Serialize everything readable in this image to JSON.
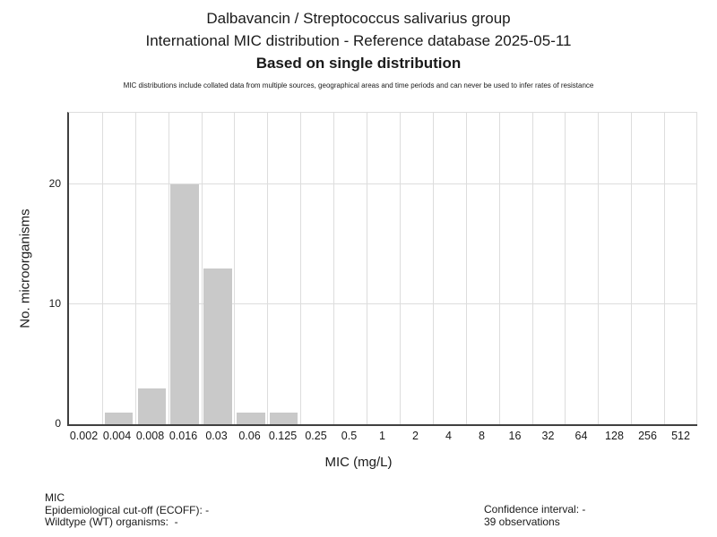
{
  "chart_data": {
    "type": "bar",
    "title": "Dalbavancin / Streptococcus salivarius group",
    "subtitle": "International MIC distribution - Reference database 2025-05-11",
    "emphasis": "Based on single distribution",
    "disclaimer": "MIC distributions include collated data from multiple sources, geographical areas and time periods and can never be used to infer rates of resistance",
    "categories": [
      "0.002",
      "0.004",
      "0.008",
      "0.016",
      "0.03",
      "0.06",
      "0.125",
      "0.25",
      "0.5",
      "1",
      "2",
      "4",
      "8",
      "16",
      "32",
      "64",
      "128",
      "256",
      "512"
    ],
    "values": [
      0,
      1,
      3,
      20,
      13,
      1,
      1,
      0,
      0,
      0,
      0,
      0,
      0,
      0,
      0,
      0,
      0,
      0,
      0
    ],
    "total_observations": 39,
    "xlabel": "MIC (mg/L)",
    "ylabel": "No. microorganisms",
    "ylim": [
      0,
      26
    ],
    "yticks": [
      0,
      10,
      20
    ],
    "grid": true,
    "legend": "none",
    "colors": {
      "bar": "#c9c9c9",
      "grid": "#dddddd",
      "axis": "#404040",
      "text": "#1a1a1a"
    }
  },
  "footer": {
    "left": [
      "MIC",
      "Epidemiological cut-off (ECOFF): -",
      "Wildtype (WT) organisms:  -"
    ],
    "right": [
      "Confidence interval: -",
      "39 observations"
    ]
  }
}
